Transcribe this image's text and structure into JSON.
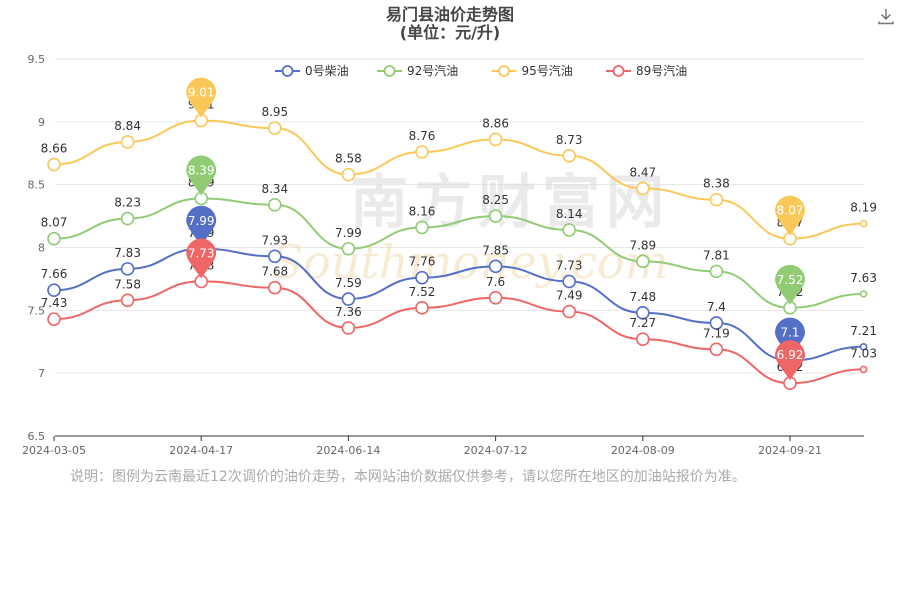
{
  "download_icon": "download-icon",
  "note": "说明：图例为云南最近12次调价的油价走势，本网站油价数据仅供参考，请以您所在地区的加油站报价为准。",
  "watermark": {
    "cn": "南方财富网",
    "en": "Southmoney.com"
  },
  "chart_data": {
    "type": "line",
    "title": "易门县油价走势图",
    "subtitle": "(单位：元/升)",
    "xlabel": "",
    "ylabel": "",
    "ylim": [
      6.5,
      9.5
    ],
    "yticks": [
      6.5,
      7,
      7.5,
      8,
      8.5,
      9,
      9.5
    ],
    "ytick_labels": [
      "6.5",
      "7",
      "7.5",
      "8",
      "8.5",
      "9",
      "9.5"
    ],
    "x": [
      "2024-03-05",
      "2024-03-19",
      "2024-04-17",
      "2024-04-30",
      "2024-06-14",
      "2024-06-28",
      "2024-07-12",
      "2024-07-26",
      "2024-08-09",
      "2024-08-23",
      "2024-09-21",
      "2024-10-09"
    ],
    "xtick_labels": [
      "2024-03-05",
      "2024-04-17",
      "2024-06-14",
      "2024-07-12",
      "2024-08-09",
      "2024-09-21"
    ],
    "grid": true,
    "legend_position": "top-center",
    "series": [
      {
        "name": "0号柴油",
        "color": "#5470c6",
        "values": [
          7.66,
          7.83,
          7.99,
          7.93,
          7.59,
          7.76,
          7.85,
          7.73,
          7.48,
          7.4,
          7.1,
          7.21
        ],
        "max": 7.99,
        "min": 7.1
      },
      {
        "name": "92号汽油",
        "color": "#91cc75",
        "values": [
          8.07,
          8.23,
          8.39,
          8.34,
          7.99,
          8.16,
          8.25,
          8.14,
          7.89,
          7.81,
          7.52,
          7.63
        ],
        "max": 8.39,
        "min": 7.52
      },
      {
        "name": "95号汽油",
        "color": "#fac858",
        "values": [
          8.66,
          8.84,
          9.01,
          8.95,
          8.58,
          8.76,
          8.86,
          8.73,
          8.47,
          8.38,
          8.07,
          8.19
        ],
        "max": 9.01,
        "min": 8.07
      },
      {
        "name": "89号汽油",
        "color": "#ee6666",
        "values": [
          7.43,
          7.58,
          7.73,
          7.68,
          7.36,
          7.52,
          7.6,
          7.49,
          7.27,
          7.19,
          6.92,
          7.03
        ],
        "max": 7.73,
        "min": 6.92
      }
    ]
  }
}
